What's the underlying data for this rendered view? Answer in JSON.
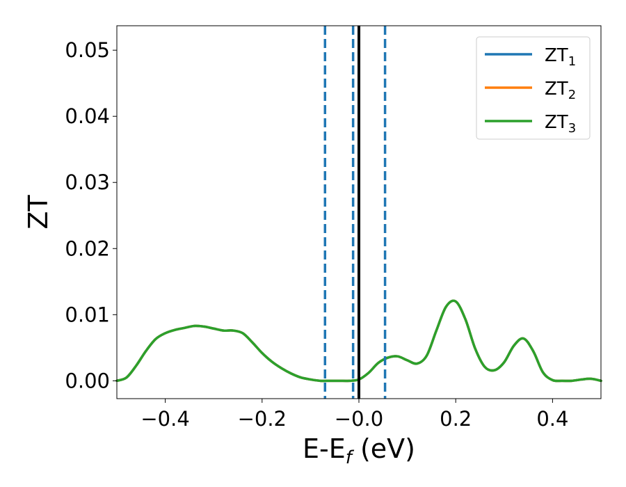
{
  "chart_data": {
    "type": "line",
    "xlabel": "E-E",
    "xlabel_sub": "f",
    "xlabel_unit": " (eV)",
    "ylabel": "ZT",
    "xlim": [
      -0.5,
      0.5
    ],
    "ylim": [
      -0.0027,
      0.0537
    ],
    "xticks": [
      -0.4,
      -0.2,
      0.0,
      0.2,
      0.4
    ],
    "xtick_labels": [
      "−0.4",
      "−0.2",
      "−0.0",
      "0.2",
      "0.4"
    ],
    "yticks": [
      0.0,
      0.01,
      0.02,
      0.03,
      0.04,
      0.05
    ],
    "ytick_labels": [
      "0.00",
      "0.01",
      "0.02",
      "0.03",
      "0.04",
      "0.05"
    ],
    "legend_position": "top-right",
    "grid": false,
    "vlines": [
      {
        "x": -0.07,
        "style": "dashed",
        "color": "#1f77b4"
      },
      {
        "x": -0.012,
        "style": "dashed",
        "color": "#1f77b4"
      },
      {
        "x": 0.0,
        "style": "solid",
        "color": "#000000"
      },
      {
        "x": 0.054,
        "style": "dashed",
        "color": "#1f77b4"
      }
    ],
    "x": [
      -0.5,
      -0.48,
      -0.46,
      -0.44,
      -0.42,
      -0.4,
      -0.38,
      -0.36,
      -0.34,
      -0.32,
      -0.3,
      -0.28,
      -0.26,
      -0.24,
      -0.22,
      -0.2,
      -0.18,
      -0.16,
      -0.14,
      -0.12,
      -0.1,
      -0.08,
      -0.06,
      -0.04,
      -0.02,
      0.0,
      0.02,
      0.04,
      0.06,
      0.08,
      0.1,
      0.12,
      0.14,
      0.16,
      0.18,
      0.2,
      0.22,
      0.24,
      0.26,
      0.28,
      0.3,
      0.32,
      0.34,
      0.36,
      0.38,
      0.4,
      0.42,
      0.44,
      0.46,
      0.48,
      0.5
    ],
    "series": [
      {
        "name": "ZT",
        "name_sub": "1",
        "color": "#1f77b4",
        "values": [
          0.0,
          0.0005,
          0.0023,
          0.0045,
          0.0063,
          0.0072,
          0.0077,
          0.008,
          0.0083,
          0.0082,
          0.0079,
          0.0076,
          0.0076,
          0.0072,
          0.0058,
          0.0042,
          0.0029,
          0.0019,
          0.0011,
          0.0005,
          0.0002,
          0.0,
          0.0,
          0.0,
          0.0,
          0.0002,
          0.0012,
          0.0027,
          0.0035,
          0.0037,
          0.0031,
          0.0026,
          0.0038,
          0.0076,
          0.0112,
          0.012,
          0.0093,
          0.0049,
          0.0021,
          0.0016,
          0.0028,
          0.0053,
          0.0064,
          0.0045,
          0.0013,
          0.0001,
          0.0,
          0.0,
          0.0002,
          0.0003,
          0.0
        ]
      },
      {
        "name": "ZT",
        "name_sub": "2",
        "color": "#ff7f0e",
        "values": [
          0.0,
          0.0005,
          0.0023,
          0.0045,
          0.0063,
          0.0072,
          0.0077,
          0.008,
          0.0083,
          0.0082,
          0.0079,
          0.0076,
          0.0076,
          0.0072,
          0.0058,
          0.0042,
          0.0029,
          0.0019,
          0.0011,
          0.0005,
          0.0002,
          0.0,
          0.0,
          0.0,
          0.0,
          0.0002,
          0.0012,
          0.0027,
          0.0035,
          0.0037,
          0.0031,
          0.0026,
          0.0038,
          0.0076,
          0.0112,
          0.012,
          0.0093,
          0.0049,
          0.0021,
          0.0016,
          0.0028,
          0.0053,
          0.0064,
          0.0045,
          0.0013,
          0.0001,
          0.0,
          0.0,
          0.0002,
          0.0003,
          0.0
        ]
      },
      {
        "name": "ZT",
        "name_sub": "3",
        "color": "#2ca02c",
        "values": [
          0.0,
          0.0005,
          0.0023,
          0.0045,
          0.0063,
          0.0072,
          0.0077,
          0.008,
          0.0083,
          0.0082,
          0.0079,
          0.0076,
          0.0076,
          0.0072,
          0.0058,
          0.0042,
          0.0029,
          0.0019,
          0.0011,
          0.0005,
          0.0002,
          0.0,
          0.0,
          0.0,
          0.0,
          0.0002,
          0.0012,
          0.0027,
          0.0035,
          0.0037,
          0.0031,
          0.0026,
          0.0038,
          0.0076,
          0.0112,
          0.012,
          0.0093,
          0.0049,
          0.0021,
          0.0016,
          0.0028,
          0.0053,
          0.0064,
          0.0045,
          0.0013,
          0.0001,
          0.0,
          0.0,
          0.0002,
          0.0003,
          0.0
        ]
      }
    ]
  }
}
